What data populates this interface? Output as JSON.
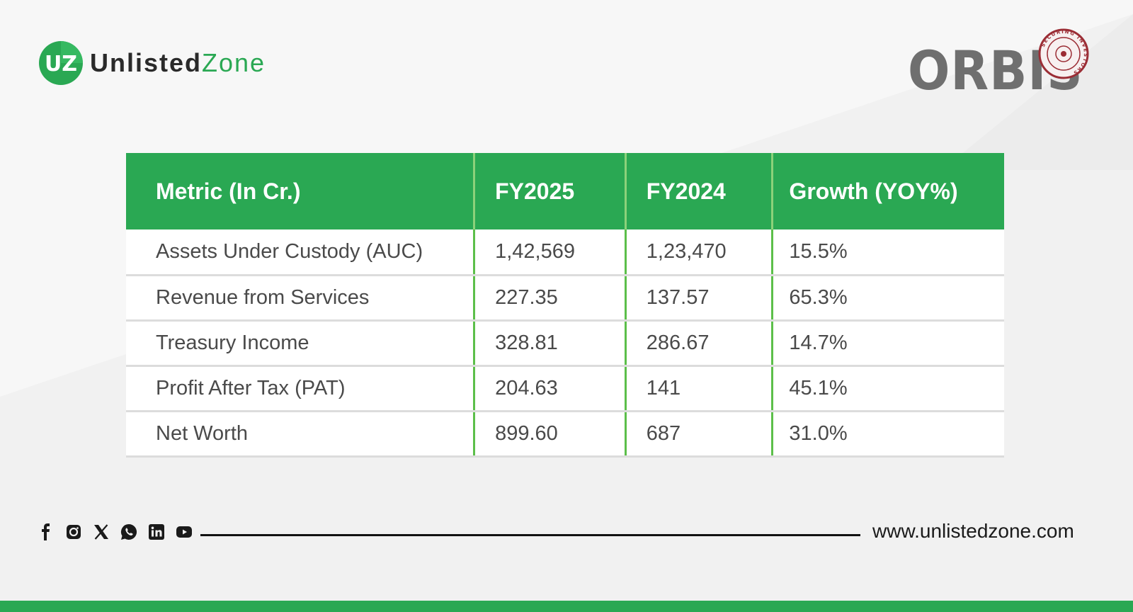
{
  "brand": {
    "logo_mark": "UZ",
    "logo_word1": "Unlisted",
    "logo_word2": "Zone",
    "company_logo": "ORBIS",
    "company_seal_text": "SECURING INVESTORS"
  },
  "colors": {
    "brand_green": "#2aa853",
    "divider_green": "#5cbf4a",
    "logo_grey": "#6f6f6f"
  },
  "table": {
    "headers": [
      "Metric (In Cr.)",
      "FY2025",
      "FY2024",
      "Growth (YOY%)"
    ],
    "rows": [
      [
        "Assets Under Custody (AUC)",
        "1,42,569",
        "1,23,470",
        "15.5%"
      ],
      [
        "Revenue from Services",
        "227.35",
        "137.57",
        "65.3%"
      ],
      [
        "Treasury Income",
        "328.81",
        "286.67",
        "14.7%"
      ],
      [
        "Profit After Tax (PAT)",
        "204.63",
        "141",
        "45.1%"
      ],
      [
        "Net Worth",
        "899.60",
        "687",
        "31.0%"
      ]
    ]
  },
  "footer": {
    "social_icons": [
      "facebook-icon",
      "instagram-icon",
      "x-icon",
      "whatsapp-icon",
      "linkedin-icon",
      "youtube-icon"
    ],
    "website": "www.unlistedzone.com"
  }
}
